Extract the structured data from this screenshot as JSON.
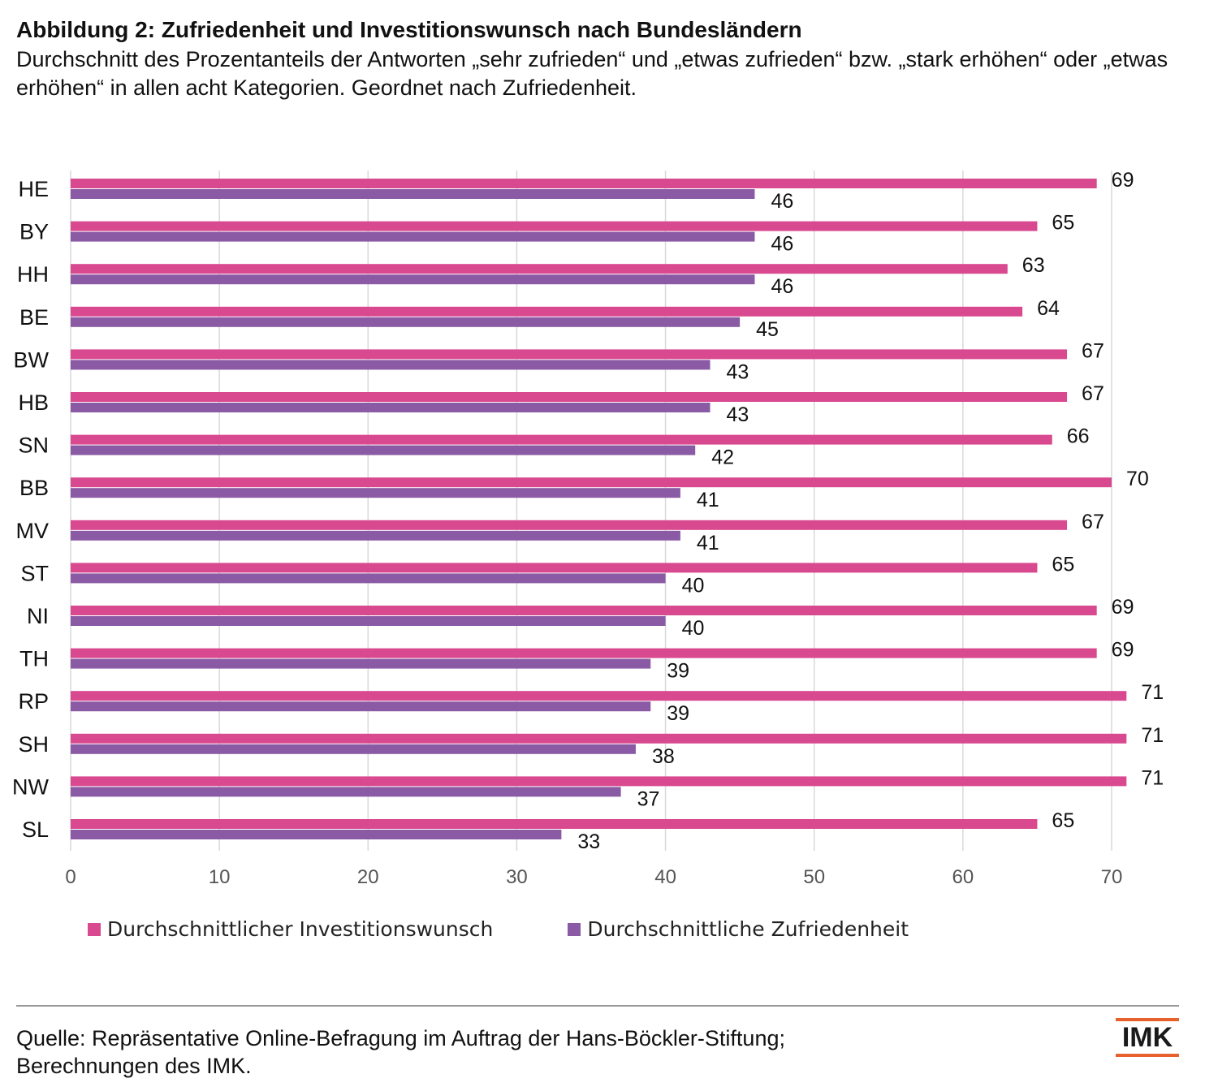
{
  "title": "Abbildung 2: Zufriedenheit und Investitionswunsch nach Bundesländern",
  "subtitle": "Durchschnitt des Prozentanteils der Antworten „sehr zufrieden“ und „etwas zufrieden“ bzw. „stark erhöhen“ oder „etwas erhöhen“ in allen acht Kategorien. Geordnet nach Zufriedenheit.",
  "source": {
    "line1": "Quelle: Repräsentative Online-Befragung im Auftrag der Hans-Böckler-Stiftung;",
    "line2": "Berechnungen des IMK."
  },
  "logo": {
    "text": "IMK",
    "accent_color": "#e8602c"
  },
  "chart_data": {
    "type": "bar",
    "orientation": "horizontal",
    "categories": [
      "HE",
      "BY",
      "HH",
      "BE",
      "BW",
      "HB",
      "SN",
      "BB",
      "MV",
      "ST",
      "NI",
      "TH",
      "RP",
      "SH",
      "NW",
      "SL"
    ],
    "series": [
      {
        "name": "Durchschnittlicher Investitionswunsch",
        "color": "#d9498f",
        "values": [
          69,
          65,
          63,
          64,
          67,
          67,
          66,
          70,
          67,
          65,
          69,
          69,
          71,
          71,
          71,
          65
        ]
      },
      {
        "name": "Durchschnittliche Zufriedenheit",
        "color": "#8a5aa5",
        "values": [
          46,
          46,
          46,
          45,
          43,
          43,
          42,
          41,
          41,
          40,
          40,
          39,
          39,
          38,
          37,
          33
        ]
      }
    ],
    "xlim": [
      0,
      70
    ],
    "xticks": [
      0,
      10,
      20,
      30,
      40,
      50,
      60,
      70
    ],
    "grid": true,
    "legend_position": "bottom",
    "data_labels": true
  }
}
